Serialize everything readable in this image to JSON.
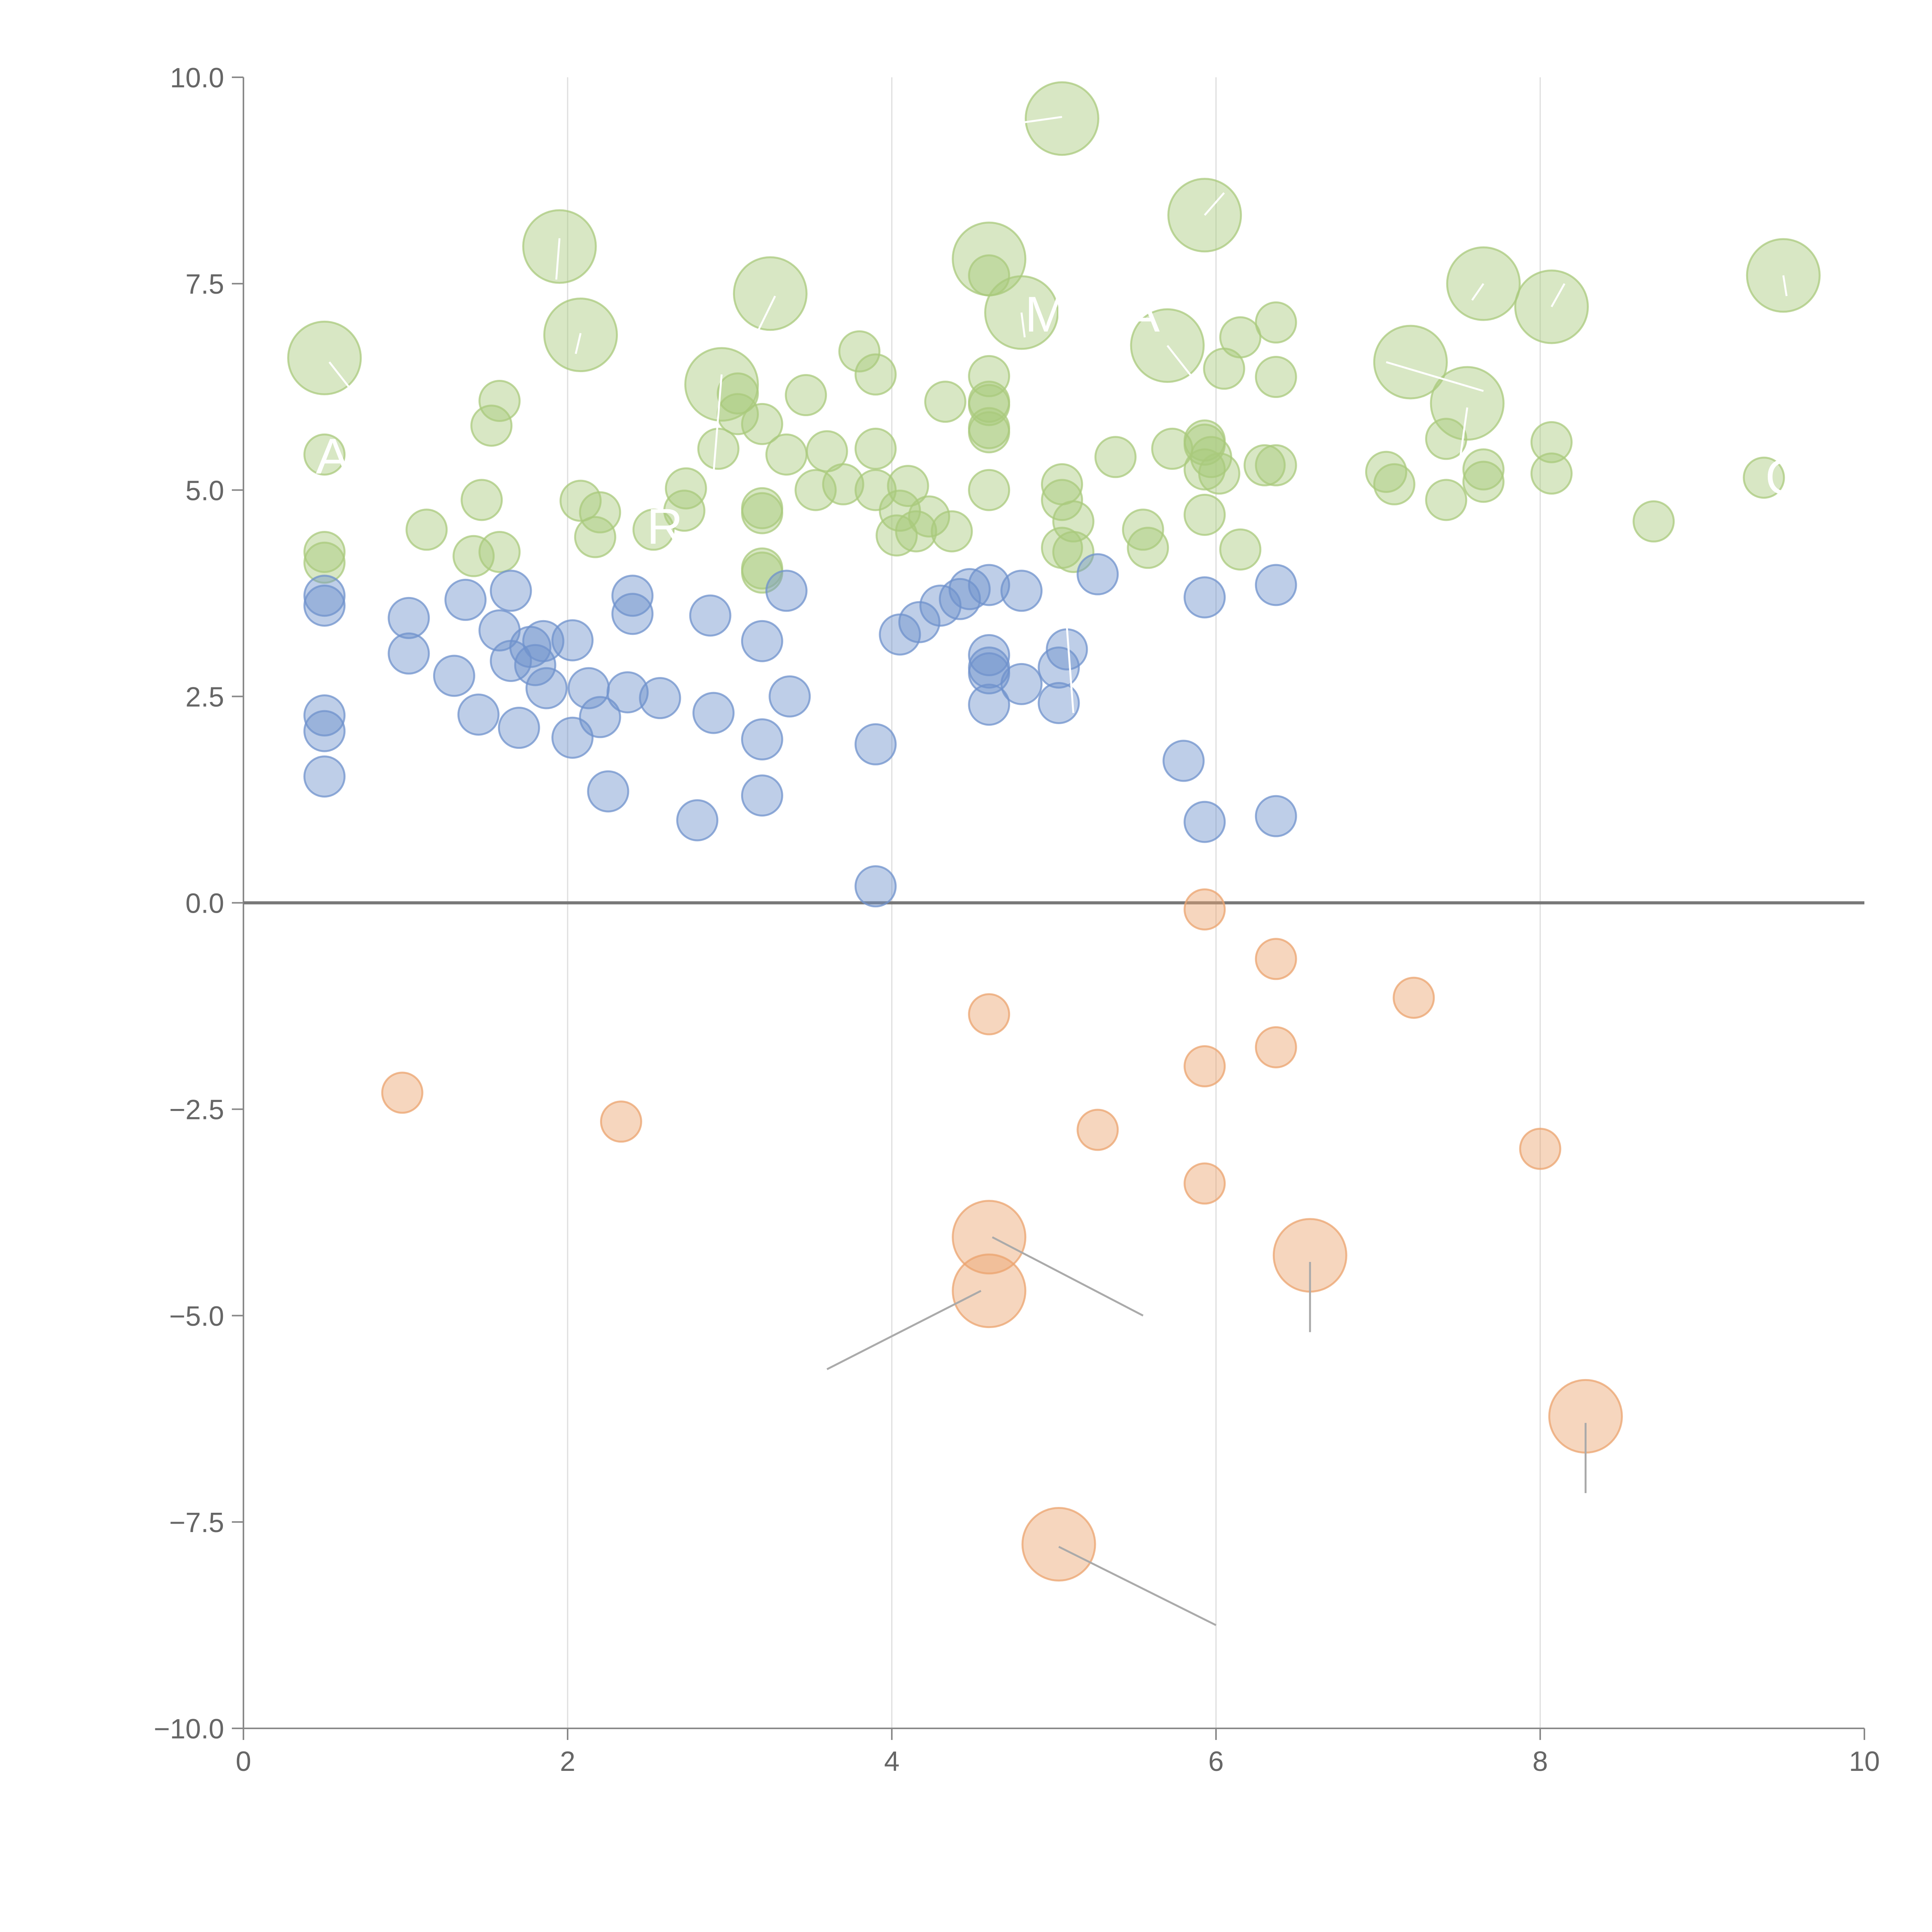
{
  "chart_data": {
    "type": "scatter",
    "title": "",
    "xlabel": "",
    "ylabel": "",
    "xlim": [
      0,
      10
    ],
    "ylim": [
      -10,
      10
    ],
    "x_ticks": [
      "0",
      "2",
      "4",
      "6",
      "8",
      "10"
    ],
    "y_ticks": [
      "10.0",
      "7.5",
      "5.0",
      "2.5",
      "0.0",
      "−2.5",
      "−5.0",
      "−7.5",
      "−10.0"
    ],
    "x_tick_values": [
      0,
      2,
      4,
      6,
      8,
      10
    ],
    "y_tick_values": [
      10,
      7.5,
      5,
      2.5,
      0,
      -2.5,
      -5,
      -7.5,
      -10
    ],
    "grid": "vertical",
    "zero_line": true,
    "series": [
      {
        "name": "green",
        "color": "#a9c97c",
        "points": [
          [
            0.5,
            6.6,
            3
          ],
          [
            1.95,
            7.95,
            3
          ],
          [
            2.08,
            6.88,
            3
          ],
          [
            2.95,
            6.28,
            3
          ],
          [
            3.25,
            7.38,
            3
          ],
          [
            4.6,
            7.8,
            3
          ],
          [
            4.8,
            7.15,
            3
          ],
          [
            5.05,
            9.5,
            3
          ],
          [
            5.7,
            6.75,
            3
          ],
          [
            5.93,
            8.33,
            3
          ],
          [
            7.2,
            6.55,
            3
          ],
          [
            7.55,
            6.05,
            3
          ],
          [
            7.65,
            7.5,
            3
          ],
          [
            8.07,
            7.22,
            3
          ],
          [
            9.5,
            7.6,
            3
          ],
          [
            0.5,
            5.43,
            1
          ],
          [
            0.5,
            4.25,
            1
          ],
          [
            0.5,
            4.12,
            1
          ],
          [
            1.13,
            4.52,
            1
          ],
          [
            1.42,
            4.2,
            1
          ],
          [
            1.47,
            4.88,
            1
          ],
          [
            1.53,
            5.78,
            1
          ],
          [
            1.58,
            6.08,
            1
          ],
          [
            1.58,
            4.25,
            1
          ],
          [
            2.08,
            4.87,
            1
          ],
          [
            2.17,
            4.43,
            1
          ],
          [
            2.2,
            4.73,
            1
          ],
          [
            2.53,
            4.52,
            1
          ],
          [
            2.72,
            4.75,
            1
          ],
          [
            2.73,
            5.02,
            1
          ],
          [
            2.93,
            5.5,
            1
          ],
          [
            3.05,
            6.17,
            1
          ],
          [
            3.05,
            5.92,
            1
          ],
          [
            3.2,
            5.8,
            1
          ],
          [
            3.2,
            4.78,
            1
          ],
          [
            3.2,
            4.72,
            1
          ],
          [
            3.2,
            4.05,
            1
          ],
          [
            3.2,
            4.0,
            1
          ],
          [
            3.35,
            5.43,
            1
          ],
          [
            3.47,
            6.15,
            1
          ],
          [
            3.53,
            5.0,
            1
          ],
          [
            3.6,
            5.47,
            1
          ],
          [
            3.7,
            5.07,
            1
          ],
          [
            3.8,
            6.68,
            1
          ],
          [
            3.9,
            6.4,
            1
          ],
          [
            3.9,
            5.5,
            1
          ],
          [
            3.9,
            5.0,
            1
          ],
          [
            4.03,
            4.45,
            1
          ],
          [
            4.05,
            4.75,
            1
          ],
          [
            4.1,
            5.05,
            1
          ],
          [
            4.15,
            4.5,
            1
          ],
          [
            4.23,
            4.68,
            1
          ],
          [
            4.33,
            6.07,
            1
          ],
          [
            4.37,
            4.5,
            1
          ],
          [
            4.6,
            7.6,
            1
          ],
          [
            4.6,
            6.38,
            1
          ],
          [
            4.6,
            6.07,
            1
          ],
          [
            4.6,
            6.03,
            1
          ],
          [
            4.6,
            5.75,
            1
          ],
          [
            4.6,
            5.7,
            1
          ],
          [
            4.6,
            5.0,
            1
          ],
          [
            5.05,
            5.07,
            1
          ],
          [
            5.05,
            4.88,
            1
          ],
          [
            5.05,
            4.3,
            1
          ],
          [
            5.12,
            4.62,
            1
          ],
          [
            5.12,
            4.25,
            1
          ],
          [
            5.38,
            5.4,
            1
          ],
          [
            5.55,
            4.52,
            1
          ],
          [
            5.58,
            4.3,
            1
          ],
          [
            5.73,
            5.5,
            1
          ],
          [
            5.93,
            5.6,
            1
          ],
          [
            5.93,
            5.55,
            1
          ],
          [
            5.93,
            5.25,
            1
          ],
          [
            5.93,
            4.7,
            1
          ],
          [
            5.97,
            5.4,
            1
          ],
          [
            6.02,
            5.2,
            1
          ],
          [
            6.05,
            6.47,
            1
          ],
          [
            6.15,
            6.85,
            1
          ],
          [
            6.15,
            4.28,
            1
          ],
          [
            6.3,
            5.3,
            1
          ],
          [
            6.37,
            5.3,
            1
          ],
          [
            6.37,
            7.03,
            1
          ],
          [
            6.37,
            6.37,
            1
          ],
          [
            7.05,
            5.22,
            1
          ],
          [
            7.1,
            5.07,
            1
          ],
          [
            7.42,
            5.62,
            1
          ],
          [
            7.42,
            4.88,
            1
          ],
          [
            7.65,
            5.25,
            1
          ],
          [
            7.65,
            5.1,
            1
          ],
          [
            8.07,
            5.58,
            1
          ],
          [
            8.07,
            5.2,
            1
          ],
          [
            8.7,
            4.62,
            1
          ],
          [
            9.38,
            5.15,
            1
          ]
        ]
      },
      {
        "name": "blue",
        "color": "#6f92cc",
        "points": [
          [
            0.5,
            3.72,
            1
          ],
          [
            0.5,
            3.6,
            1
          ],
          [
            0.5,
            2.27,
            1
          ],
          [
            0.5,
            2.08,
            1
          ],
          [
            0.5,
            1.53,
            1
          ],
          [
            1.02,
            3.45,
            1
          ],
          [
            1.02,
            3.02,
            1
          ],
          [
            1.3,
            2.75,
            1
          ],
          [
            1.37,
            3.67,
            1
          ],
          [
            1.45,
            2.28,
            1
          ],
          [
            1.58,
            3.3,
            1
          ],
          [
            1.65,
            3.78,
            1
          ],
          [
            1.65,
            2.93,
            1
          ],
          [
            1.7,
            2.12,
            1
          ],
          [
            1.77,
            3.1,
            1
          ],
          [
            1.8,
            2.88,
            1
          ],
          [
            1.85,
            3.17,
            1
          ],
          [
            1.87,
            2.6,
            1
          ],
          [
            2.03,
            3.18,
            1
          ],
          [
            2.03,
            2.0,
            1
          ],
          [
            2.13,
            2.6,
            1
          ],
          [
            2.2,
            2.25,
            1
          ],
          [
            2.25,
            1.35,
            1
          ],
          [
            2.37,
            2.55,
            1
          ],
          [
            2.4,
            3.72,
            1
          ],
          [
            2.4,
            3.5,
            1
          ],
          [
            2.57,
            2.48,
            1
          ],
          [
            2.8,
            1.0,
            1
          ],
          [
            2.88,
            3.48,
            1
          ],
          [
            2.9,
            2.3,
            1
          ],
          [
            3.2,
            3.17,
            1
          ],
          [
            3.2,
            1.98,
            1
          ],
          [
            3.2,
            1.3,
            1
          ],
          [
            3.35,
            3.78,
            1
          ],
          [
            3.37,
            2.5,
            1
          ],
          [
            3.9,
            1.92,
            1
          ],
          [
            3.9,
            0.2,
            1
          ],
          [
            4.05,
            3.25,
            1
          ],
          [
            4.17,
            3.4,
            1
          ],
          [
            4.3,
            3.6,
            1
          ],
          [
            4.42,
            3.68,
            1
          ],
          [
            4.48,
            3.8,
            1
          ],
          [
            4.6,
            3.85,
            1
          ],
          [
            4.6,
            3.0,
            1
          ],
          [
            4.6,
            2.85,
            1
          ],
          [
            4.6,
            2.78,
            1
          ],
          [
            4.6,
            2.4,
            1
          ],
          [
            4.8,
            2.65,
            1
          ],
          [
            4.8,
            3.78,
            1
          ],
          [
            5.03,
            2.85,
            1
          ],
          [
            5.03,
            2.42,
            1
          ],
          [
            5.08,
            3.07,
            1
          ],
          [
            5.27,
            3.98,
            1
          ],
          [
            5.8,
            1.72,
            1
          ],
          [
            5.93,
            3.7,
            1
          ],
          [
            5.93,
            0.98,
            1
          ],
          [
            6.37,
            3.85,
            1
          ],
          [
            6.37,
            1.05,
            1
          ]
        ]
      },
      {
        "name": "orange",
        "color": "#eba36e",
        "points": [
          [
            0.98,
            -2.3,
            1
          ],
          [
            2.33,
            -2.65,
            1
          ],
          [
            4.6,
            -1.35,
            1
          ],
          [
            5.27,
            -2.75,
            1
          ],
          [
            5.93,
            -0.08,
            1
          ],
          [
            5.93,
            -1.98,
            1
          ],
          [
            5.93,
            -3.4,
            1
          ],
          [
            6.37,
            -0.68,
            1
          ],
          [
            6.37,
            -1.75,
            1
          ],
          [
            7.22,
            -1.15,
            1
          ],
          [
            8.0,
            -2.98,
            1
          ],
          [
            4.6,
            -4.05,
            3
          ],
          [
            4.6,
            -4.7,
            3
          ],
          [
            6.58,
            -4.27,
            3
          ],
          [
            8.28,
            -6.22,
            3
          ],
          [
            5.03,
            -7.77,
            3
          ]
        ]
      }
    ],
    "annotations": [
      {
        "text": "A",
        "x": 0.55,
        "y": 5.2
      },
      {
        "text": "R",
        "x": 2.6,
        "y": 4.35
      },
      {
        "text": "M",
        "x": 4.95,
        "y": 6.92
      },
      {
        "text": "A",
        "x": 5.55,
        "y": 6.92
      },
      {
        "text": "C",
        "x": 9.5,
        "y": 4.95
      }
    ],
    "leader_lines": [
      {
        "from": [
          4.62,
          -4.05
        ],
        "to": [
          5.55,
          -5.0
        ]
      },
      {
        "from": [
          4.55,
          -4.7
        ],
        "to": [
          3.6,
          -5.65
        ]
      },
      {
        "from": [
          6.58,
          -4.35
        ],
        "to": [
          6.58,
          -5.2
        ]
      },
      {
        "from": [
          8.28,
          -6.3
        ],
        "to": [
          8.28,
          -7.15
        ]
      },
      {
        "from": [
          5.03,
          -7.8
        ],
        "to": [
          6.0,
          -8.75
        ]
      },
      {
        "from": [
          0.53,
          6.55
        ],
        "to": [
          0.65,
          6.25
        ]
      },
      {
        "from": [
          1.95,
          8.05
        ],
        "to": [
          1.93,
          7.55
        ]
      },
      {
        "from": [
          2.08,
          6.9
        ],
        "to": [
          2.05,
          6.65
        ]
      },
      {
        "from": [
          2.95,
          6.4
        ],
        "to": [
          2.9,
          5.2
        ]
      },
      {
        "from": [
          3.28,
          7.35
        ],
        "to": [
          3.18,
          6.95
        ]
      },
      {
        "from": [
          4.8,
          7.15
        ],
        "to": [
          4.82,
          6.85
        ]
      },
      {
        "from": [
          5.05,
          9.52
        ],
        "to": [
          4.8,
          9.45
        ]
      },
      {
        "from": [
          5.7,
          6.75
        ],
        "to": [
          5.9,
          6.25
        ]
      },
      {
        "from": [
          5.93,
          8.33
        ],
        "to": [
          6.05,
          8.6
        ]
      },
      {
        "from": [
          7.05,
          6.55
        ],
        "to": [
          7.65,
          6.2
        ]
      },
      {
        "from": [
          7.55,
          6.0
        ],
        "to": [
          7.5,
          5.3
        ]
      },
      {
        "from": [
          7.65,
          7.5
        ],
        "to": [
          7.58,
          7.3
        ]
      },
      {
        "from": [
          8.07,
          7.22
        ],
        "to": [
          8.15,
          7.5
        ]
      },
      {
        "from": [
          9.5,
          7.6
        ],
        "to": [
          9.52,
          7.35
        ]
      },
      {
        "from": [
          5.07,
          3.6
        ],
        "to": [
          5.12,
          2.3
        ]
      }
    ]
  }
}
